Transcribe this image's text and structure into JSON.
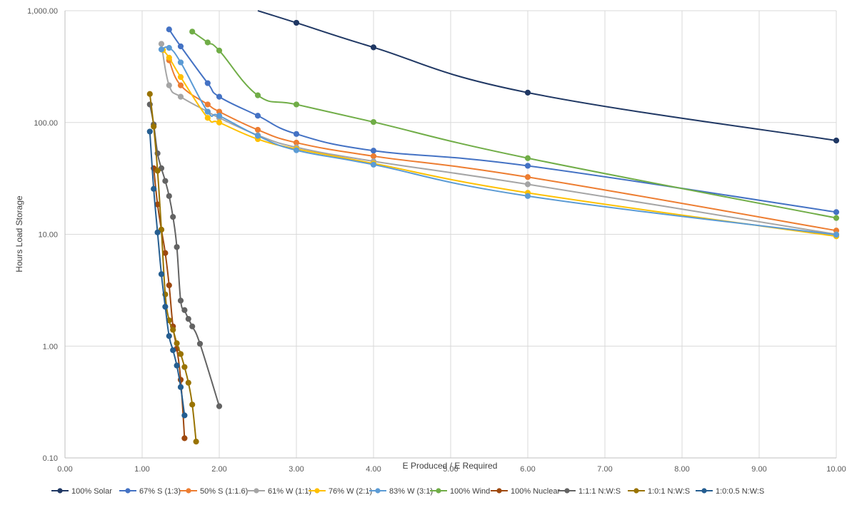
{
  "chart_data": {
    "type": "line",
    "title": "",
    "xlabel": "E Produced / E Required",
    "ylabel": "Hours Load Storage",
    "xlim": [
      0,
      10
    ],
    "ylim": [
      0.1,
      1000
    ],
    "y_scale": "log",
    "grid": "vertical and horizontal major gridlines",
    "legend_position": "bottom",
    "x_tick_labels": [
      "0.00",
      "1.00",
      "2.00",
      "3.00",
      "4.00",
      "5.00",
      "6.00",
      "7.00",
      "8.00",
      "9.00",
      "10.00"
    ],
    "y_tick_labels": [
      "0.10",
      "1.00",
      "10.00",
      "100.00",
      "1,000.00"
    ],
    "series": [
      {
        "name": "100% Solar",
        "color": "#203864",
        "points": [
          [
            2.5,
            1000
          ],
          [
            3,
            780
          ],
          [
            4,
            470
          ],
          [
            6,
            185
          ],
          [
            10,
            69
          ]
        ]
      },
      {
        "name": "67% S (1:3)",
        "color": "#4472C4",
        "points": [
          [
            1.35,
            680
          ],
          [
            1.5,
            480
          ],
          [
            1.85,
            225
          ],
          [
            2,
            170
          ],
          [
            2.5,
            115
          ],
          [
            3,
            79
          ],
          [
            4,
            56
          ],
          [
            6,
            41
          ],
          [
            10,
            15.8
          ]
        ]
      },
      {
        "name": "50% S (1:1.6)",
        "color": "#ED7D31",
        "points": [
          [
            1.35,
            360
          ],
          [
            1.5,
            215
          ],
          [
            1.85,
            145
          ],
          [
            2,
            125
          ],
          [
            2.5,
            86
          ],
          [
            3,
            66
          ],
          [
            4,
            50
          ],
          [
            6,
            32.5
          ],
          [
            10,
            10.8
          ]
        ]
      },
      {
        "name": "61% W (1:1)",
        "color": "#A5A5A5",
        "points": [
          [
            1.25,
            505
          ],
          [
            1.35,
            215
          ],
          [
            1.5,
            170
          ],
          [
            1.85,
            125
          ],
          [
            2,
            110
          ],
          [
            2.5,
            77
          ],
          [
            3,
            60
          ],
          [
            4,
            45
          ],
          [
            6,
            28
          ],
          [
            10,
            10
          ]
        ]
      },
      {
        "name": "76% W (2:1)",
        "color": "#FFC000",
        "points": [
          [
            1.27,
            445
          ],
          [
            1.35,
            380
          ],
          [
            1.5,
            255
          ],
          [
            1.85,
            110
          ],
          [
            2,
            100
          ],
          [
            2.5,
            71
          ],
          [
            3,
            58
          ],
          [
            4,
            43
          ],
          [
            6,
            23.5
          ],
          [
            10,
            9.6
          ]
        ]
      },
      {
        "name": "83% W (3:1)",
        "color": "#5B9BD5",
        "points": [
          [
            1.25,
            450
          ],
          [
            1.35,
            465
          ],
          [
            1.5,
            345
          ],
          [
            1.85,
            125
          ],
          [
            2,
            115
          ],
          [
            2.5,
            76
          ],
          [
            3,
            56.5
          ],
          [
            4,
            42
          ],
          [
            6,
            22
          ],
          [
            10,
            9.9
          ]
        ]
      },
      {
        "name": "100% Wind",
        "color": "#70AD47",
        "points": [
          [
            1.65,
            650
          ],
          [
            1.85,
            520
          ],
          [
            2,
            440
          ],
          [
            2.5,
            175
          ],
          [
            3,
            145
          ],
          [
            4,
            101
          ],
          [
            6,
            48
          ],
          [
            10,
            14
          ]
        ]
      },
      {
        "name": "100% Nuclear",
        "color": "#9E480E",
        "points": [
          [
            1.15,
            39
          ],
          [
            1.2,
            18.5
          ],
          [
            1.25,
            11
          ],
          [
            1.3,
            6.8
          ],
          [
            1.35,
            3.5
          ],
          [
            1.4,
            1.5
          ],
          [
            1.45,
            0.95
          ],
          [
            1.5,
            0.5
          ],
          [
            1.55,
            0.15
          ]
        ]
      },
      {
        "name": "1:1:1 N:W:S",
        "color": "#636363",
        "points": [
          [
            1.1,
            145
          ],
          [
            1.15,
            96
          ],
          [
            1.2,
            53
          ],
          [
            1.25,
            39
          ],
          [
            1.3,
            30
          ],
          [
            1.35,
            22
          ],
          [
            1.4,
            14.3
          ],
          [
            1.45,
            7.7
          ],
          [
            1.5,
            2.55
          ],
          [
            1.55,
            2.1
          ],
          [
            1.6,
            1.75
          ],
          [
            1.65,
            1.5
          ],
          [
            1.75,
            1.05
          ],
          [
            2,
            0.29
          ]
        ]
      },
      {
        "name": "1:0:1 N:W:S",
        "color": "#997300",
        "points": [
          [
            1.1,
            180
          ],
          [
            1.15,
            92
          ],
          [
            1.2,
            37
          ],
          [
            1.25,
            11
          ],
          [
            1.3,
            2.9
          ],
          [
            1.35,
            1.7
          ],
          [
            1.4,
            1.4
          ],
          [
            1.45,
            1.06
          ],
          [
            1.5,
            0.85
          ],
          [
            1.55,
            0.65
          ],
          [
            1.6,
            0.47
          ],
          [
            1.65,
            0.3
          ],
          [
            1.7,
            0.14
          ]
        ]
      },
      {
        "name": "1:0:0.5 N:W:S",
        "color": "#255E91",
        "points": [
          [
            1.1,
            83
          ],
          [
            1.15,
            25.5
          ],
          [
            1.2,
            10.4
          ],
          [
            1.25,
            4.4
          ],
          [
            1.3,
            2.25
          ],
          [
            1.35,
            1.23
          ],
          [
            1.4,
            0.92
          ],
          [
            1.45,
            0.67
          ],
          [
            1.5,
            0.43
          ],
          [
            1.55,
            0.24
          ]
        ]
      }
    ]
  }
}
